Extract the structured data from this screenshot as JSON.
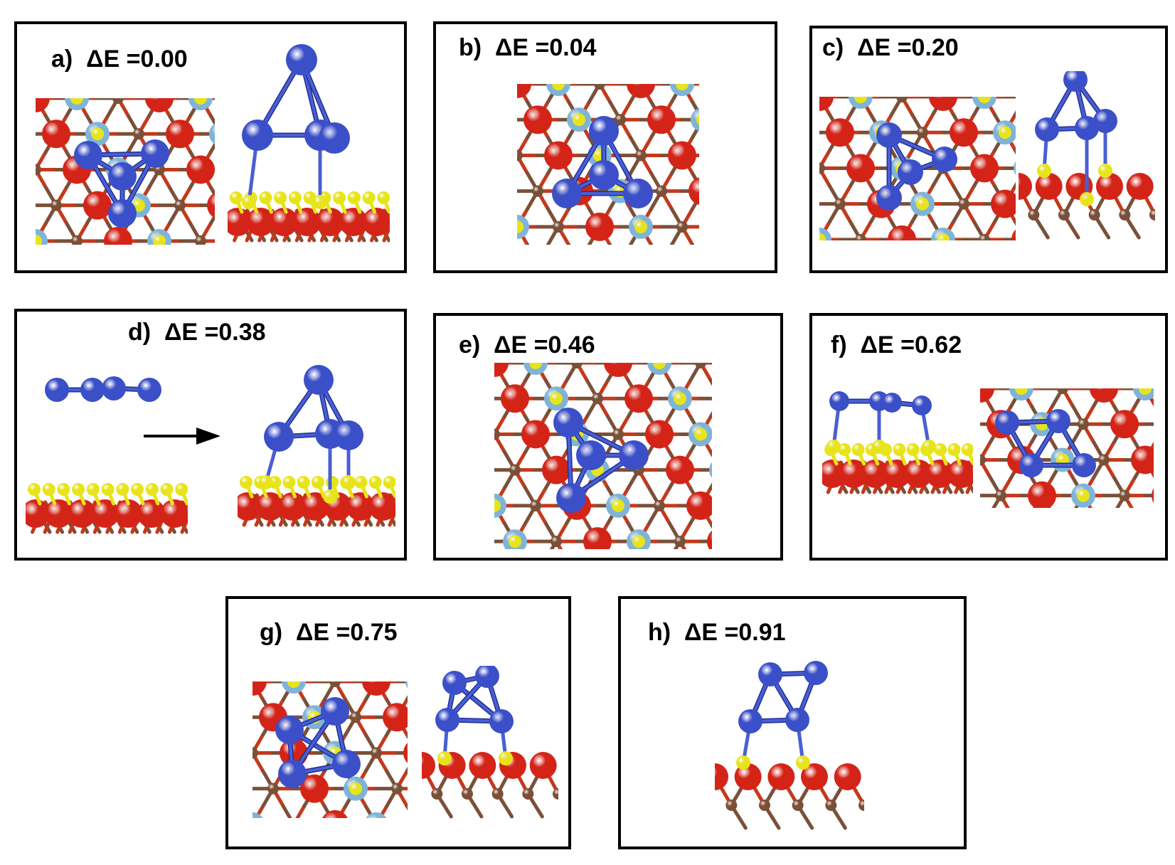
{
  "panels": [
    {
      "id": "a",
      "label": "a)  ΔE =0.00"
    },
    {
      "id": "b",
      "label": "b)  ΔE =0.04"
    },
    {
      "id": "c",
      "label": "c)  ΔE =0.20"
    },
    {
      "id": "d",
      "label": "d)  ΔE =0.38"
    },
    {
      "id": "e",
      "label": "e)  ΔE =0.46"
    },
    {
      "id": "f",
      "label": "f)  ΔE =0.62"
    },
    {
      "id": "g",
      "label": "g)  ΔE =0.75"
    },
    {
      "id": "h",
      "label": "h)  ΔE =0.91"
    }
  ],
  "colors": {
    "cluster_atom": "#3a4fc8",
    "cluster_bond": "#4a5fd0",
    "red_atom": "#d42418",
    "yellow_atom": "#e8e41a",
    "lightblue_atom": "#7fb4d8",
    "brown_atom": "#7a5038",
    "arrow": "#000000"
  }
}
